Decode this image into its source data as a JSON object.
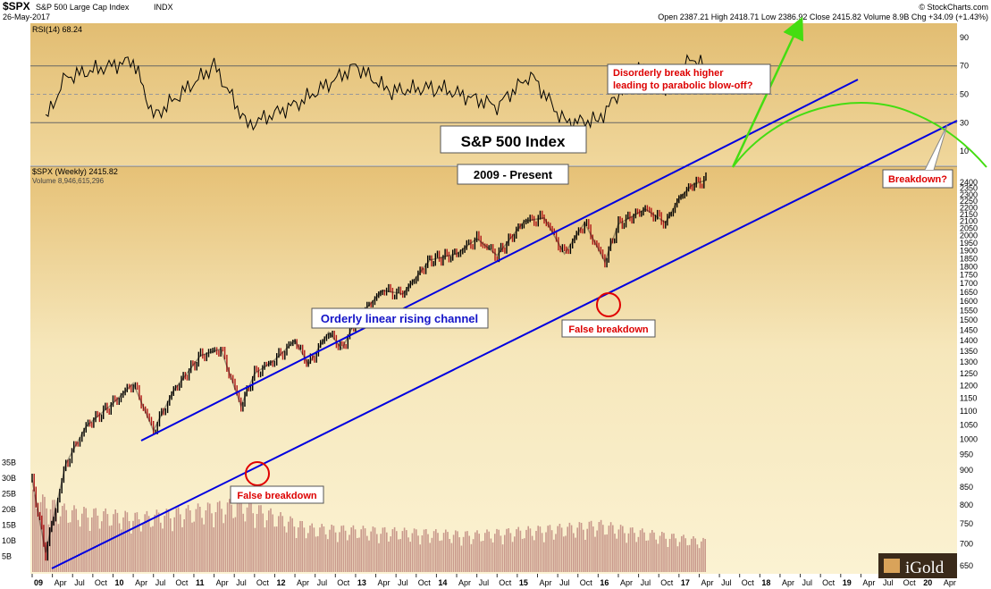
{
  "header": {
    "symbol": "$SPX",
    "name": "S&P 500 Large Cap Index",
    "exchange": "INDX",
    "date": "26-May-2017",
    "credit": "© StockCharts.com",
    "ohlc": "Open 2387.21  High 2418.71  Low 2386.92  Close 2415.82  Volume 8.9B  Chg +34.09 (+1.43%)"
  },
  "colors": {
    "background_top": "#e9c57a",
    "background_light": "#f8ecc4",
    "channel": "#0000e0",
    "parabola": "#44dd11",
    "annotation": "#dd0000",
    "candles": "#000000",
    "volume_bars": "#c89a8a"
  },
  "chart_data": [
    {
      "type": "line",
      "title": "RSI(14) 68.24",
      "ylim": [
        0,
        100
      ],
      "y_ticks": [
        10,
        30,
        50,
        70,
        90
      ],
      "reference_lines": [
        30,
        50,
        70
      ],
      "last_value": 68.24,
      "x": [
        "2009-03",
        "2009-06",
        "2010-04",
        "2010-07",
        "2011-04",
        "2011-09",
        "2012-05",
        "2013-01",
        "2013-06",
        "2014-01",
        "2014-10",
        "2015-03",
        "2015-08",
        "2016-01",
        "2016-07",
        "2016-11",
        "2017-03",
        "2017-05"
      ],
      "values": [
        32,
        62,
        74,
        34,
        70,
        28,
        45,
        70,
        52,
        55,
        42,
        64,
        30,
        32,
        68,
        55,
        76,
        68
      ]
    },
    {
      "type": "line",
      "title": "$SPX (Weekly) 2415.82",
      "subtitle": "Volume 8,946,615,296",
      "scale": "log",
      "ylim": [
        650,
        2450
      ],
      "y_ticks": [
        650,
        700,
        750,
        800,
        850,
        900,
        950,
        1000,
        1050,
        1100,
        1150,
        1200,
        1250,
        1300,
        1350,
        1400,
        1450,
        1500,
        1550,
        1600,
        1650,
        1700,
        1750,
        1800,
        1850,
        1900,
        1950,
        2000,
        2050,
        2100,
        2150,
        2200,
        2250,
        2300,
        2350,
        2400
      ],
      "x_ticks": [
        "09",
        "Apr",
        "Jul",
        "Oct",
        "10",
        "Apr",
        "Jul",
        "Oct",
        "11",
        "Apr",
        "Jul",
        "Oct",
        "12",
        "Apr",
        "Jul",
        "Oct",
        "13",
        "Apr",
        "Jul",
        "Oct",
        "14",
        "Apr",
        "Jul",
        "Oct",
        "15",
        "Apr",
        "Jul",
        "Oct",
        "16",
        "Apr",
        "Jul",
        "Oct",
        "17",
        "Apr",
        "Jul",
        "Oct",
        "18",
        "Apr",
        "Jul",
        "Oct",
        "19",
        "Apr",
        "Jul",
        "Oct",
        "20",
        "Apr"
      ],
      "series": [
        {
          "name": "$SPX",
          "x": [
            "2009-01",
            "2009-03",
            "2009-06",
            "2009-09",
            "2010-01",
            "2010-04",
            "2010-07",
            "2010-10",
            "2011-02",
            "2011-05",
            "2011-08",
            "2011-10",
            "2012-01",
            "2012-04",
            "2012-06",
            "2012-09",
            "2012-11",
            "2013-01",
            "2013-05",
            "2013-08",
            "2013-12",
            "2014-04",
            "2014-07",
            "2014-10",
            "2015-02",
            "2015-05",
            "2015-08",
            "2015-11",
            "2016-02",
            "2016-04",
            "2016-08",
            "2016-11",
            "2017-01",
            "2017-03",
            "2017-05"
          ],
          "values": [
            870,
            680,
            920,
            1045,
            1130,
            1210,
            1030,
            1180,
            1330,
            1360,
            1120,
            1250,
            1310,
            1400,
            1290,
            1440,
            1360,
            1500,
            1660,
            1640,
            1840,
            1880,
            1980,
            1870,
            2100,
            2125,
            1880,
            2090,
            1830,
            2080,
            2190,
            2090,
            2270,
            2380,
            2415
          ]
        }
      ],
      "volume": {
        "y_ticks_labels": [
          "5B",
          "10B",
          "15B",
          "20B",
          "25B",
          "30B",
          "35B"
        ],
        "y_ticks_values": [
          5,
          10,
          15,
          20,
          25,
          30,
          35
        ],
        "x": [
          "2009-01",
          "2009-06",
          "2010-05",
          "2011-08",
          "2012-06",
          "2013-06",
          "2014-06",
          "2015-08",
          "2016-01",
          "2016-06",
          "2017-05"
        ],
        "values": [
          22,
          18,
          16,
          20,
          13,
          12,
          11,
          13,
          14,
          12,
          9
        ]
      },
      "annotations": {
        "title": "S&P 500 Index",
        "subtitle": "2009 - Present",
        "channel_label": "Orderly linear rising channel",
        "blowoff_label_line1": "Disorderly break higher",
        "blowoff_label_line2": "leading to parabolic blow-off?",
        "false_breakdown_1": "False breakdown",
        "false_breakdown_2": "False breakdown",
        "breakdown_label": "Breakdown?",
        "logo": "iGold"
      }
    }
  ]
}
